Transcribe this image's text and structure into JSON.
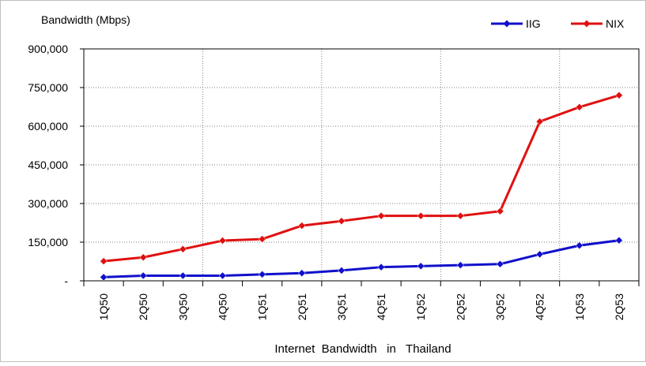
{
  "chart_data": {
    "type": "line",
    "ylabel": "Bandwidth (Mbps)",
    "xlabel": "Internet  Bandwidth   in   Thailand",
    "categories": [
      "1Q50",
      "2Q50",
      "3Q50",
      "4Q50",
      "1Q51",
      "2Q51",
      "3Q51",
      "4Q51",
      "1Q52",
      "2Q52",
      "3Q52",
      "4Q52",
      "1Q53",
      "2Q53"
    ],
    "ylim": [
      0,
      900000
    ],
    "yticks": [
      0,
      150000,
      300000,
      450000,
      600000,
      750000,
      900000
    ],
    "ytick_labels": [
      "-",
      "150,000",
      "300,000",
      "450,000",
      "600,000",
      "750,000",
      "900,000"
    ],
    "grid": true,
    "legend_position": "top-right",
    "series": [
      {
        "name": "IIG",
        "color": "#1010cc",
        "marker": "diamond",
        "values": [
          14000,
          20000,
          20000,
          20000,
          25000,
          30000,
          40000,
          53000,
          57000,
          61000,
          65000,
          103000,
          137000,
          157000
        ]
      },
      {
        "name": "NIX",
        "color": "#e01010",
        "marker": "diamond",
        "values": [
          76000,
          91000,
          123000,
          156000,
          162000,
          214000,
          232000,
          252000,
          252000,
          252000,
          270000,
          618000,
          674000,
          720000
        ]
      }
    ]
  }
}
